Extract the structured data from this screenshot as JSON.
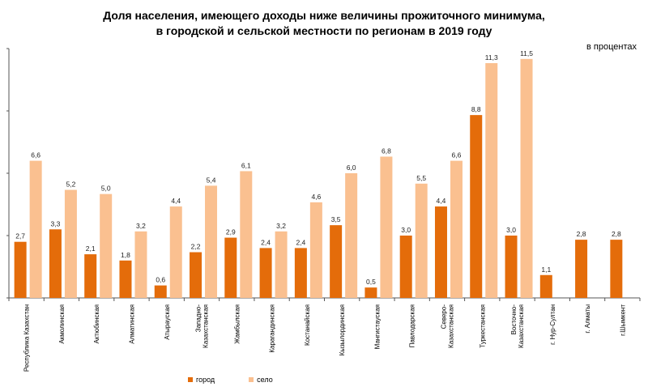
{
  "chart_data": {
    "type": "bar",
    "title_line1": "Доля населения, имеющего доходы ниже величины прожиточного минимума,",
    "title_line2": "в городской и сельской местности по регионам в 2019  году",
    "unit": "в процентах",
    "ylim": [
      0,
      12
    ],
    "ytick_step": 3,
    "categories": [
      "Республика Казахстан",
      "Акмолинская",
      "Актюбинская",
      "Алматинская",
      "Атырауская",
      "Западно-|Казахстанская",
      "Жамбылская",
      "Карагандинская",
      "Костанайская",
      "Кызылординская",
      "Мангистауская",
      "Павлодарская",
      "Северо-|Казахстанская",
      "Туркестанская",
      "Восточно-|Казахстанская",
      "г. Нур-Султан",
      "г. Алматы",
      "г.Шымкент"
    ],
    "series": [
      {
        "name": "город",
        "color": "#E46C0A",
        "values": [
          2.7,
          3.3,
          2.1,
          1.8,
          0.6,
          2.2,
          2.9,
          2.4,
          2.4,
          3.5,
          0.5,
          3.0,
          4.4,
          8.8,
          3.0,
          1.1,
          2.8,
          2.8
        ]
      },
      {
        "name": "село",
        "color": "#FAC090",
        "values": [
          6.6,
          5.2,
          5.0,
          3.2,
          4.4,
          5.4,
          6.1,
          3.2,
          4.6,
          6.0,
          6.8,
          5.5,
          6.6,
          11.3,
          11.5,
          null,
          null,
          null
        ]
      }
    ]
  }
}
